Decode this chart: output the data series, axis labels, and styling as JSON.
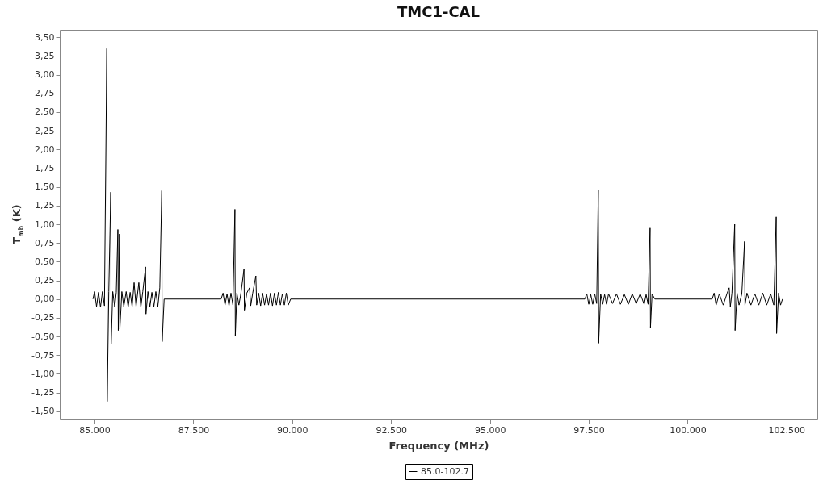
{
  "chart_data": {
    "type": "line",
    "title": "TMC1-CAL",
    "xlabel": "Frequency (MHz)",
    "ylabel": "T$_{mb}$ (K)",
    "x": [
      84960,
      85000,
      85050,
      85100,
      85150,
      85200,
      85250,
      85310,
      85320,
      85360,
      85410,
      85420,
      85460,
      85510,
      85550,
      85590,
      85600,
      85630,
      85640,
      85690,
      85740,
      85800,
      85850,
      85900,
      85950,
      86000,
      86050,
      86120,
      86170,
      86220,
      86290,
      86300,
      86350,
      86400,
      86450,
      86500,
      86550,
      86600,
      86650,
      86700,
      86710,
      86760,
      88200,
      88250,
      88300,
      88350,
      88400,
      88450,
      88500,
      88550,
      88560,
      88600,
      88650,
      88700,
      88780,
      88790,
      88850,
      88920,
      88950,
      89000,
      89080,
      89100,
      89150,
      89200,
      89250,
      89300,
      89350,
      89400,
      89450,
      89500,
      89550,
      89600,
      89650,
      89700,
      89750,
      89800,
      89850,
      89900,
      89960,
      97400,
      97450,
      97500,
      97550,
      97600,
      97650,
      97700,
      97740,
      97750,
      97800,
      97850,
      97900,
      97950,
      98000,
      98100,
      98200,
      98300,
      98400,
      98500,
      98600,
      98700,
      98800,
      98900,
      98950,
      99000,
      99050,
      99060,
      99100,
      99170,
      100620,
      100670,
      100720,
      100800,
      100900,
      101000,
      101050,
      101080,
      101120,
      101190,
      101200,
      101250,
      101300,
      101370,
      101440,
      101450,
      101500,
      101600,
      101700,
      101800,
      101900,
      102000,
      102100,
      102180,
      102240,
      102250,
      102300,
      102350,
      102400
    ],
    "series": [
      {
        "name": "85.0-102.7",
        "color": "#000000",
        "values": [
          0,
          0.1,
          -0.1,
          0.09,
          -0.11,
          0.1,
          -0.09,
          3.35,
          -1.37,
          0.1,
          1.43,
          -0.6,
          0.1,
          -0.1,
          0.09,
          0.93,
          -0.42,
          0.87,
          -0.4,
          0.1,
          -0.1,
          0.1,
          -0.11,
          0.09,
          -0.1,
          0.22,
          -0.1,
          0.22,
          -0.11,
          0.1,
          0.43,
          -0.2,
          0.1,
          -0.1,
          0.09,
          -0.1,
          0.1,
          -0.1,
          0.15,
          1.45,
          -0.57,
          0,
          0,
          0.08,
          -0.08,
          0.07,
          -0.09,
          0.08,
          -0.08,
          1.2,
          -0.49,
          0.08,
          -0.08,
          0.07,
          0.4,
          -0.15,
          0.08,
          0.15,
          -0.09,
          0.08,
          0.31,
          -0.08,
          0.08,
          -0.09,
          0.08,
          -0.08,
          0.07,
          -0.08,
          0.08,
          -0.09,
          0.08,
          -0.08,
          0.09,
          -0.08,
          0.07,
          -0.08,
          0.08,
          -0.08,
          0,
          0,
          0.07,
          -0.07,
          0.06,
          -0.07,
          0.07,
          -0.06,
          1.46,
          -0.59,
          0.07,
          -0.07,
          0.06,
          -0.07,
          0.07,
          -0.06,
          0.07,
          -0.07,
          0.06,
          -0.07,
          0.07,
          -0.06,
          0.07,
          -0.07,
          0.06,
          -0.07,
          0.95,
          -0.38,
          0.07,
          0,
          0,
          0.08,
          -0.08,
          0.07,
          -0.08,
          0.08,
          0.15,
          -0.1,
          0.08,
          1.0,
          -0.42,
          0.08,
          -0.08,
          0.07,
          0.77,
          -0.08,
          0.08,
          -0.08,
          0.07,
          -0.08,
          0.08,
          -0.08,
          0.07,
          -0.08,
          1.1,
          -0.46,
          0.08,
          -0.08,
          0
        ]
      }
    ],
    "xlim": [
      84120,
      103280
    ],
    "xticks": [
      {
        "value": 85000,
        "label": "85.000"
      },
      {
        "value": 87500,
        "label": "87.500"
      },
      {
        "value": 90000,
        "label": "90.000"
      },
      {
        "value": 92500,
        "label": "92.500"
      },
      {
        "value": 95000,
        "label": "95.000"
      },
      {
        "value": 97500,
        "label": "97.500"
      },
      {
        "value": 100000,
        "label": "100.000"
      },
      {
        "value": 102500,
        "label": "102.500"
      }
    ],
    "ylim": [
      -1.61,
      3.6
    ],
    "yticks": [
      {
        "value": -1.5,
        "label": "-1,50"
      },
      {
        "value": -1.25,
        "label": "-1,25"
      },
      {
        "value": -1,
        "label": "-1,00"
      },
      {
        "value": -0.75,
        "label": "-0,75"
      },
      {
        "value": -0.5,
        "label": "-0,50"
      },
      {
        "value": -0.25,
        "label": "-0,25"
      },
      {
        "value": 0,
        "label": "0,00"
      },
      {
        "value": 0.25,
        "label": "0,25"
      },
      {
        "value": 0.5,
        "label": "0,50"
      },
      {
        "value": 0.75,
        "label": "0,75"
      },
      {
        "value": 1,
        "label": "1,00"
      },
      {
        "value": 1.25,
        "label": "1,25"
      },
      {
        "value": 1.5,
        "label": "1,50"
      },
      {
        "value": 1.75,
        "label": "1,75"
      },
      {
        "value": 2,
        "label": "2,00"
      },
      {
        "value": 2.25,
        "label": "2,25"
      },
      {
        "value": 2.5,
        "label": "2,50"
      },
      {
        "value": 2.75,
        "label": "2,75"
      },
      {
        "value": 3,
        "label": "3,00"
      },
      {
        "value": 3.25,
        "label": "3,25"
      },
      {
        "value": 3.5,
        "label": "3,50"
      }
    ],
    "grid": false,
    "legend": "bottom",
    "marker": "none",
    "line_style": "solid"
  }
}
